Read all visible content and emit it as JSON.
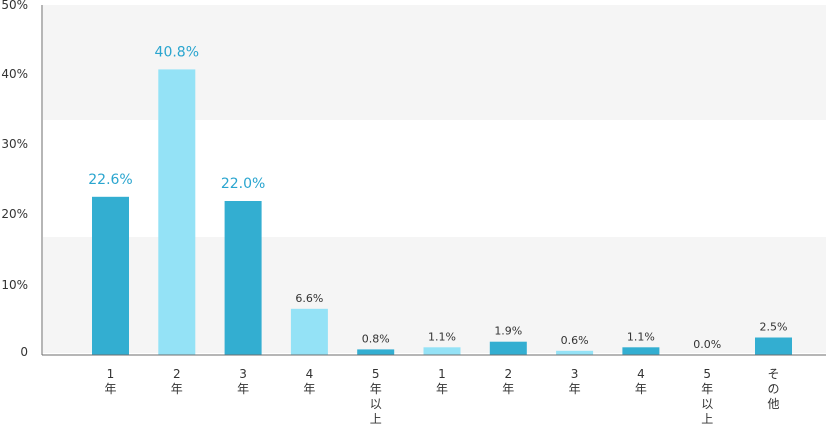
{
  "chart_data": {
    "type": "bar",
    "title": "",
    "xlabel": "",
    "ylabel": "",
    "ylim": [
      0,
      50
    ],
    "y_ticks": [
      "50%",
      "40%",
      "30%",
      "20%",
      "10%",
      "0"
    ],
    "categories": [
      "1年",
      "2年",
      "3年",
      "4年",
      "5年以上",
      "1年",
      "2年",
      "3年",
      "4年",
      "5年以上",
      "その他"
    ],
    "values": [
      22.6,
      40.8,
      22.0,
      6.6,
      0.8,
      1.1,
      1.9,
      0.6,
      1.1,
      0.0,
      2.5
    ],
    "value_labels": [
      "22.6%",
      "40.8%",
      "22.0%",
      "6.6%",
      "0.8%",
      "1.1%",
      "1.9%",
      "0.6%",
      "1.1%",
      "0.0%",
      "2.5%"
    ],
    "bar_colors": [
      "#33aed1",
      "#94e2f6",
      "#33aed1",
      "#94e2f6",
      "#33aed1",
      "#94e2f6",
      "#33aed1",
      "#94e2f6",
      "#33aed1",
      "#94e2f6",
      "#33aed1"
    ],
    "grid": false,
    "legend": "none"
  },
  "colors": {
    "dark_bar": "#33aed1",
    "light_bar": "#94e2f6",
    "label_accent": "#2aa5cf",
    "band": "#f5f5f5",
    "axis": "#6e6e6e",
    "text": "#333333"
  }
}
